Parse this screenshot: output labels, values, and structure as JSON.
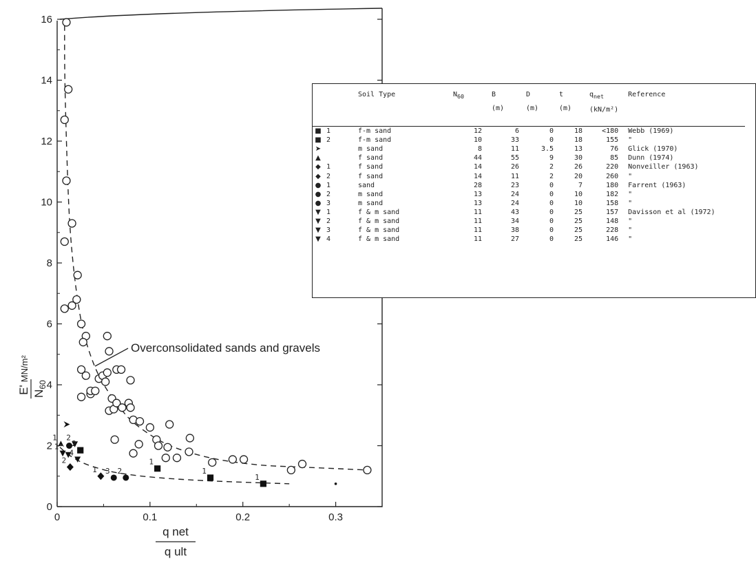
{
  "chart_data": {
    "type": "scatter",
    "title": "",
    "xlabel": "q net / q ult",
    "xlabel_num": "q net",
    "xlabel_den": "q ult",
    "ylabel": "E' / N60 MN/m²",
    "xlim": [
      0,
      0.35
    ],
    "ylim": [
      0,
      16
    ],
    "xticks": [
      0,
      0.1,
      0.2,
      0.3
    ],
    "xtick_labels": [
      "0",
      "0.1",
      "0.2",
      "0.3"
    ],
    "yticks": [
      0,
      2,
      4,
      6,
      8,
      10,
      12,
      14,
      16
    ],
    "ytick_labels": [
      "0",
      "2",
      "4",
      "6",
      "8",
      "10",
      "12",
      "14",
      "16"
    ],
    "grid": false,
    "annotation": "Overconsolidated sands and gravels",
    "series": [
      {
        "name": "Overconsolidated sands and gravels",
        "marker": "open-circle",
        "points": [
          [
            0.01,
            15.9
          ],
          [
            0.012,
            13.7
          ],
          [
            0.008,
            12.7
          ],
          [
            0.01,
            10.7
          ],
          [
            0.016,
            9.3
          ],
          [
            0.008,
            8.7
          ],
          [
            0.022,
            7.6
          ],
          [
            0.008,
            6.5
          ],
          [
            0.016,
            6.6
          ],
          [
            0.021,
            6.8
          ],
          [
            0.026,
            6.0
          ],
          [
            0.031,
            5.6
          ],
          [
            0.028,
            5.4
          ],
          [
            0.026,
            4.5
          ],
          [
            0.031,
            4.3
          ],
          [
            0.026,
            3.6
          ],
          [
            0.036,
            3.7
          ],
          [
            0.036,
            3.8
          ],
          [
            0.041,
            3.8
          ],
          [
            0.045,
            4.2
          ],
          [
            0.049,
            4.3
          ],
          [
            0.052,
            4.1
          ],
          [
            0.054,
            4.4
          ],
          [
            0.064,
            4.5
          ],
          [
            0.069,
            4.5
          ],
          [
            0.079,
            4.15
          ],
          [
            0.054,
            5.6
          ],
          [
            0.056,
            5.1
          ],
          [
            0.059,
            3.55
          ],
          [
            0.056,
            3.15
          ],
          [
            0.061,
            3.2
          ],
          [
            0.064,
            3.4
          ],
          [
            0.07,
            3.25
          ],
          [
            0.077,
            3.4
          ],
          [
            0.079,
            3.25
          ],
          [
            0.082,
            2.85
          ],
          [
            0.089,
            2.8
          ],
          [
            0.062,
            2.2
          ],
          [
            0.088,
            2.05
          ],
          [
            0.082,
            1.75
          ],
          [
            0.1,
            2.6
          ],
          [
            0.107,
            2.2
          ],
          [
            0.109,
            2.0
          ],
          [
            0.119,
            1.95
          ],
          [
            0.117,
            1.6
          ],
          [
            0.129,
            1.6
          ],
          [
            0.121,
            2.7
          ],
          [
            0.143,
            2.25
          ],
          [
            0.142,
            1.8
          ],
          [
            0.167,
            1.45
          ],
          [
            0.189,
            1.55
          ],
          [
            0.201,
            1.55
          ],
          [
            0.252,
            1.2
          ],
          [
            0.264,
            1.4
          ],
          [
            0.334,
            1.2
          ]
        ]
      },
      {
        "name": "f-m sand 1 Webb (1969)",
        "marker": "filled-square",
        "points": [
          [
            0.222,
            0.75
          ]
        ],
        "labels": [
          "1"
        ]
      },
      {
        "name": "f-m sand 2 Webb (1969)",
        "marker": "filled-square",
        "points": [
          [
            0.025,
            1.85
          ],
          [
            0.108,
            1.25
          ],
          [
            0.165,
            0.95
          ]
        ],
        "labels": [
          "2",
          "1",
          "1"
        ]
      },
      {
        "name": "m sand Glick (1970)",
        "marker": "right-arrow",
        "points": [
          [
            0.01,
            2.7
          ]
        ]
      },
      {
        "name": "f sand Dunn (1974)",
        "marker": "up-arrow",
        "points": [
          [
            0.004,
            2.05
          ]
        ],
        "labels": [
          "1"
        ]
      },
      {
        "name": "f sand Nonveiller (1963)",
        "marker": "filled-diamond",
        "points": [
          [
            0.014,
            1.3
          ],
          [
            0.047,
            1.0
          ]
        ],
        "labels": [
          "2",
          "1"
        ]
      },
      {
        "name": "sand / m sand Farrent (1963)",
        "marker": "filled-circle",
        "points": [
          [
            0.013,
            2.0
          ],
          [
            0.061,
            0.95
          ],
          [
            0.074,
            0.95
          ]
        ],
        "labels": [
          "",
          "3",
          "2"
        ]
      },
      {
        "name": "f & m sand Davisson et al (1972)",
        "marker": "down-triangle",
        "points": [
          [
            0.006,
            1.75
          ],
          [
            0.012,
            1.7
          ],
          [
            0.019,
            2.05
          ],
          [
            0.022,
            1.55
          ]
        ],
        "labels": [
          "1",
          "",
          "2",
          "4"
        ]
      },
      {
        "name": "small dot",
        "marker": "small-dot",
        "points": [
          [
            0.3,
            0.75
          ]
        ]
      }
    ],
    "curves": [
      {
        "name": "upper envelope",
        "style": "dashed",
        "points": [
          [
            0.008,
            15.8
          ],
          [
            0.008,
            14.5
          ],
          [
            0.009,
            13.0
          ],
          [
            0.011,
            11.0
          ],
          [
            0.013,
            9.5
          ],
          [
            0.016,
            8.3
          ],
          [
            0.02,
            7.2
          ],
          [
            0.025,
            6.2
          ],
          [
            0.03,
            5.5
          ],
          [
            0.04,
            4.6
          ],
          [
            0.05,
            4.0
          ],
          [
            0.06,
            3.55
          ],
          [
            0.07,
            3.15
          ],
          [
            0.08,
            2.8
          ],
          [
            0.1,
            2.35
          ],
          [
            0.12,
            2.0
          ],
          [
            0.15,
            1.7
          ],
          [
            0.18,
            1.5
          ],
          [
            0.22,
            1.35
          ],
          [
            0.26,
            1.3
          ],
          [
            0.3,
            1.25
          ],
          [
            0.334,
            1.2
          ]
        ]
      },
      {
        "name": "lower envelope",
        "style": "dashed",
        "points": [
          [
            0.003,
            1.95
          ],
          [
            0.01,
            1.75
          ],
          [
            0.02,
            1.55
          ],
          [
            0.03,
            1.4
          ],
          [
            0.045,
            1.25
          ],
          [
            0.06,
            1.13
          ],
          [
            0.08,
            1.04
          ],
          [
            0.1,
            0.97
          ],
          [
            0.13,
            0.9
          ],
          [
            0.16,
            0.85
          ],
          [
            0.2,
            0.8
          ],
          [
            0.25,
            0.75
          ]
        ]
      }
    ]
  },
  "table": {
    "headers": {
      "soil": "Soil Type",
      "n": "N",
      "n_sub": "60",
      "b": "B",
      "b_unit": "(m)",
      "d": "D",
      "d_unit": "(m)",
      "t": "t",
      "t_unit": "(m)",
      "q": "q",
      "q_sub": "net",
      "q_unit": "(kN/m²)",
      "ref": "Reference"
    },
    "rows": [
      {
        "sym": "filled-square",
        "num": "1",
        "soil": "f-m sand",
        "n": "12",
        "b": "6",
        "d": "0",
        "t": "18",
        "q": "<180",
        "ref": "Webb (1969)"
      },
      {
        "sym": "filled-square",
        "num": "2",
        "soil": "f-m sand",
        "n": "10",
        "b": "33",
        "d": "0",
        "t": "18",
        "q": "155",
        "ref": "\""
      },
      {
        "sym": "right-arrow",
        "num": "",
        "soil": "m sand",
        "n": "8",
        "b": "11",
        "d": "3.5",
        "t": "13",
        "q": "76",
        "ref": "Glick (1970)"
      },
      {
        "sym": "up-arrow",
        "num": "",
        "soil": "f sand",
        "n": "44",
        "b": "55",
        "d": "9",
        "t": "30",
        "q": "85",
        "ref": "Dunn (1974)"
      },
      {
        "sym": "filled-diamond",
        "num": "1",
        "soil": "f sand",
        "n": "14",
        "b": "26",
        "d": "2",
        "t": "26",
        "q": "220",
        "ref": "Nonveiller (1963)"
      },
      {
        "sym": "filled-diamond",
        "num": "2",
        "soil": "f sand",
        "n": "14",
        "b": "11",
        "d": "2",
        "t": "20",
        "q": "260",
        "ref": "\""
      },
      {
        "sym": "filled-circle",
        "num": "1",
        "soil": "sand",
        "n": "28",
        "b": "23",
        "d": "0",
        "t": "7",
        "q": "180",
        "ref": "Farrent (1963)"
      },
      {
        "sym": "filled-circle",
        "num": "2",
        "soil": "m sand",
        "n": "13",
        "b": "24",
        "d": "0",
        "t": "10",
        "q": "182",
        "ref": "\""
      },
      {
        "sym": "filled-circle",
        "num": "3",
        "soil": "m sand",
        "n": "13",
        "b": "24",
        "d": "0",
        "t": "10",
        "q": "158",
        "ref": "\""
      },
      {
        "sym": "down-triangle",
        "num": "1",
        "soil": "f & m sand",
        "n": "11",
        "b": "43",
        "d": "0",
        "t": "25",
        "q": "157",
        "ref": "Davisson et al (1972)"
      },
      {
        "sym": "down-triangle",
        "num": "2",
        "soil": "f & m sand",
        "n": "11",
        "b": "34",
        "d": "0",
        "t": "25",
        "q": "148",
        "ref": "\""
      },
      {
        "sym": "down-triangle",
        "num": "3",
        "soil": "f & m sand",
        "n": "11",
        "b": "38",
        "d": "0",
        "t": "25",
        "q": "228",
        "ref": "\""
      },
      {
        "sym": "down-triangle",
        "num": "4",
        "soil": "f & m sand",
        "n": "11",
        "b": "27",
        "d": "0",
        "t": "25",
        "q": "146",
        "ref": "\""
      }
    ]
  }
}
